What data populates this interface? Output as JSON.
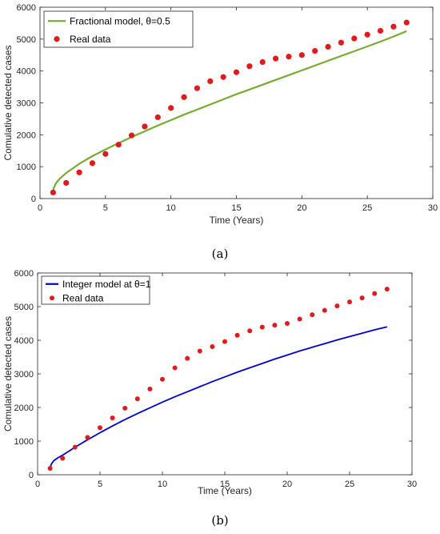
{
  "chart_data": [
    {
      "type": "line",
      "caption": "(a)",
      "xlabel": "Time (Years)",
      "ylabel": "Comulative detected cases",
      "xlim": [
        0,
        30
      ],
      "ylim": [
        0,
        6000
      ],
      "xticks": [
        0,
        5,
        10,
        15,
        20,
        25,
        30
      ],
      "yticks": [
        0,
        1000,
        2000,
        3000,
        4000,
        5000,
        6000
      ],
      "grid": false,
      "legend": "top-left",
      "series": [
        {
          "name": "Fractional model, θ=0.5",
          "kind": "line",
          "color": "#77ac30",
          "x": [
            1,
            1.05,
            1.2,
            1.5,
            2,
            3,
            4,
            5,
            6,
            7,
            8,
            9,
            10,
            11,
            12,
            13,
            14,
            15,
            16,
            17,
            18,
            19,
            20,
            21,
            22,
            23,
            24,
            25,
            26,
            27,
            28
          ],
          "y": [
            200,
            330,
            470,
            620,
            800,
            1090,
            1330,
            1540,
            1740,
            1930,
            2110,
            2290,
            2460,
            2630,
            2790,
            2950,
            3110,
            3270,
            3420,
            3570,
            3720,
            3870,
            4020,
            4170,
            4320,
            4470,
            4620,
            4770,
            4920,
            5080,
            5250
          ]
        },
        {
          "name": "Real data",
          "kind": "scatter",
          "color": "#e31a1c",
          "x": [
            1,
            2,
            3,
            4,
            5,
            6,
            7,
            8,
            9,
            10,
            11,
            12,
            13,
            14,
            15,
            16,
            17,
            18,
            19,
            20,
            21,
            22,
            23,
            24,
            25,
            26,
            27,
            28
          ],
          "y": [
            190,
            490,
            820,
            1110,
            1400,
            1690,
            1980,
            2260,
            2550,
            2840,
            3180,
            3460,
            3680,
            3810,
            3960,
            4150,
            4280,
            4390,
            4450,
            4500,
            4630,
            4760,
            4890,
            5020,
            5140,
            5260,
            5390,
            5520
          ]
        }
      ]
    },
    {
      "type": "line",
      "caption": "(b)",
      "xlabel": "Time (Years)",
      "ylabel": "Comulative detected cases",
      "xlim": [
        0,
        30
      ],
      "ylim": [
        0,
        6000
      ],
      "xticks": [
        0,
        5,
        10,
        15,
        20,
        25,
        30
      ],
      "yticks": [
        0,
        1000,
        2000,
        3000,
        4000,
        5000,
        6000
      ],
      "grid": false,
      "legend": "top-left",
      "series": [
        {
          "name": "Integer model at θ=1",
          "kind": "line",
          "color": "#0000cc",
          "x": [
            1,
            1.1,
            1.3,
            1.6,
            2,
            3,
            4,
            5,
            6,
            7,
            8,
            9,
            10,
            11,
            12,
            13,
            14,
            15,
            16,
            17,
            18,
            19,
            20,
            21,
            22,
            23,
            24,
            25,
            26,
            27,
            28
          ],
          "y": [
            200,
            320,
            420,
            500,
            580,
            820,
            1040,
            1250,
            1450,
            1640,
            1820,
            1990,
            2160,
            2320,
            2470,
            2620,
            2770,
            2910,
            3050,
            3180,
            3310,
            3440,
            3560,
            3680,
            3790,
            3900,
            4010,
            4110,
            4210,
            4310,
            4400
          ]
        },
        {
          "name": "Real data",
          "kind": "scatter",
          "color": "#e31a1c",
          "x": [
            1,
            2,
            3,
            4,
            5,
            6,
            7,
            8,
            9,
            10,
            11,
            12,
            13,
            14,
            15,
            16,
            17,
            18,
            19,
            20,
            21,
            22,
            23,
            24,
            25,
            26,
            27,
            28
          ],
          "y": [
            190,
            490,
            820,
            1110,
            1400,
            1690,
            1980,
            2260,
            2550,
            2840,
            3180,
            3460,
            3680,
            3810,
            3960,
            4150,
            4280,
            4390,
            4450,
            4500,
            4630,
            4760,
            4890,
            5020,
            5140,
            5260,
            5390,
            5520
          ]
        }
      ]
    }
  ]
}
